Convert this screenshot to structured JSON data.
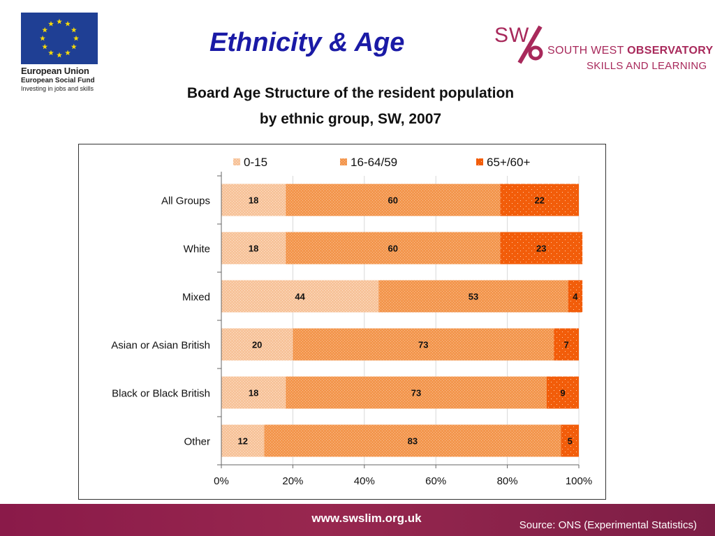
{
  "header": {
    "title": "Ethnicity & Age",
    "eu_logo": {
      "name": "European Union",
      "fund": "European Social Fund",
      "tagline": "Investing in jobs and skills"
    },
    "swo_logo": {
      "mark": "SW/o",
      "name_plain": "SOUTH WEST ",
      "name_bold": "OBSERVATORY",
      "subtitle": "SKILLS AND LEARNING"
    }
  },
  "chart_data": {
    "type": "bar",
    "orientation": "horizontal",
    "stacked": "percent",
    "title_line1": "Board Age Structure of the resident population",
    "title_line2": "by ethnic group, SW, 2007",
    "categories": [
      "All Groups",
      "White",
      "Mixed",
      "Asian or Asian British",
      "Black or Black British",
      "Other"
    ],
    "series": [
      {
        "name": "0-15",
        "values": [
          18,
          18,
          44,
          20,
          18,
          12
        ],
        "color": "#f7c39a"
      },
      {
        "name": "16-64/59",
        "values": [
          60,
          60,
          53,
          73,
          73,
          83
        ],
        "color": "#f39a55"
      },
      {
        "name": "65+/60+",
        "values": [
          22,
          23,
          4,
          7,
          9,
          5
        ],
        "color": "#f25d0a"
      }
    ],
    "x_ticks": [
      "0%",
      "20%",
      "40%",
      "60%",
      "80%",
      "100%"
    ],
    "xlim": [
      0,
      100
    ],
    "legend_position": "top",
    "grid": true
  },
  "footer": {
    "url": "www.swslim.org.uk",
    "source": "Source: ONS (Experimental Statistics)"
  }
}
